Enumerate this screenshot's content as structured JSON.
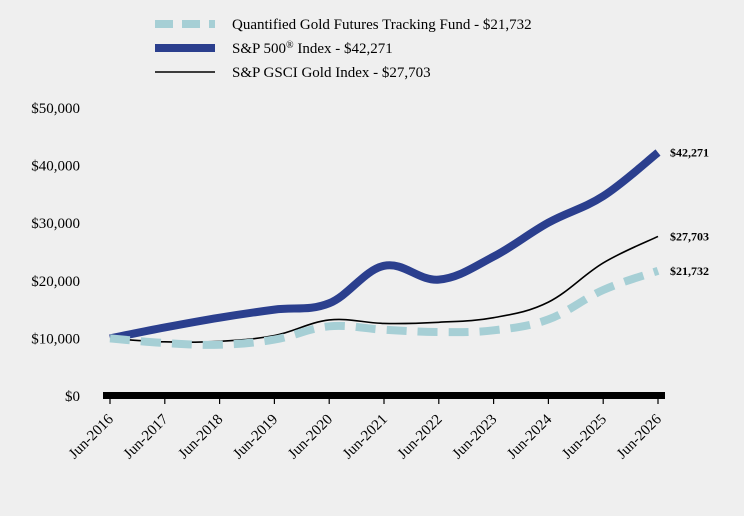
{
  "chart_data": {
    "type": "line",
    "title": "",
    "xlabel": "",
    "ylabel": "",
    "categories": [
      "Jun-2016",
      "Jun-2017",
      "Jun-2018",
      "Jun-2019",
      "Jun-2020",
      "Jun-2021",
      "Jun-2022",
      "Jun-2023",
      "Jun-2024",
      "Jun-2025",
      "Jun-2026"
    ],
    "ylim": [
      0,
      50000
    ],
    "yticks": [
      {
        "value": 0,
        "label": "$0"
      },
      {
        "value": 10000,
        "label": "$10,000"
      },
      {
        "value": 20000,
        "label": "$20,000"
      },
      {
        "value": 30000,
        "label": "$30,000"
      },
      {
        "value": 40000,
        "label": "$40,000"
      },
      {
        "value": 50000,
        "label": "$50,000"
      }
    ],
    "grid": false,
    "legend_position": "top",
    "series": [
      {
        "name": "Quantified Gold Futures Tracking Fund - $21,732",
        "end_label": "$21,732",
        "color": "#a6cfd5",
        "style": "dashed-thick",
        "values": [
          10000,
          9200,
          8900,
          9800,
          12100,
          11500,
          11100,
          11400,
          13300,
          18400,
          21732
        ]
      },
      {
        "name": "S&P 500® Index - $42,271",
        "end_label": "$42,271",
        "color": "#2b3f8e",
        "style": "solid-thick",
        "values": [
          10000,
          11900,
          13600,
          15000,
          16100,
          22600,
          20200,
          24200,
          30100,
          34700,
          42271
        ]
      },
      {
        "name": "S&P GSCI Gold Index - $27,703",
        "end_label": "$27,703",
        "color": "#000000",
        "style": "solid-thin",
        "values": [
          10000,
          9400,
          9500,
          10500,
          13200,
          12600,
          12800,
          13600,
          16300,
          23100,
          27703
        ]
      }
    ]
  }
}
